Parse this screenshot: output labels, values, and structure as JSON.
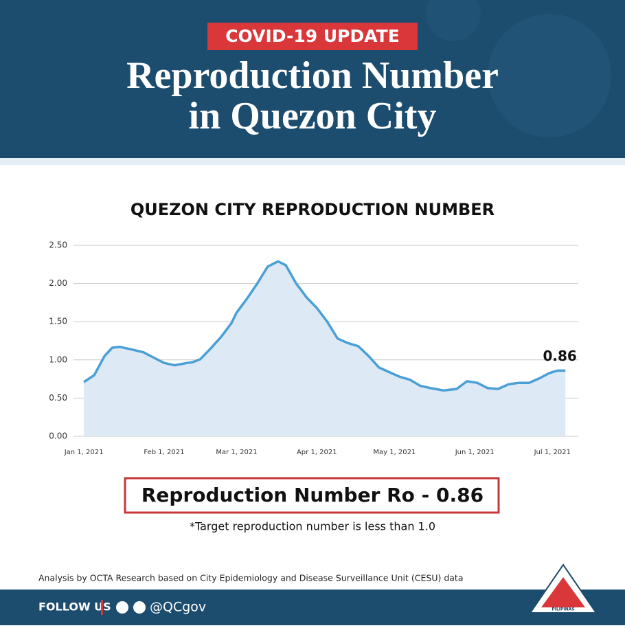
{
  "header": {
    "badge": "COVID-19 UPDATE",
    "title_line1": "Reproduction Number",
    "title_line2": "in Quezon City"
  },
  "chart_data": {
    "type": "area",
    "title": "QUEZON CITY REPRODUCTION NUMBER",
    "x": [
      "2021-01-01",
      "2021-01-05",
      "2021-01-09",
      "2021-01-12",
      "2021-01-15",
      "2021-01-19",
      "2021-01-24",
      "2021-01-28",
      "2021-02-01",
      "2021-02-05",
      "2021-02-10",
      "2021-02-12",
      "2021-02-15",
      "2021-02-19",
      "2021-02-23",
      "2021-02-27",
      "2021-03-01",
      "2021-03-05",
      "2021-03-09",
      "2021-03-13",
      "2021-03-17",
      "2021-03-20",
      "2021-03-24",
      "2021-03-28",
      "2021-04-01",
      "2021-04-05",
      "2021-04-09",
      "2021-04-13",
      "2021-04-17",
      "2021-04-21",
      "2021-04-25",
      "2021-04-29",
      "2021-05-03",
      "2021-05-07",
      "2021-05-11",
      "2021-05-15",
      "2021-05-20",
      "2021-05-25",
      "2021-05-29",
      "2021-06-02",
      "2021-06-06",
      "2021-06-10",
      "2021-06-14",
      "2021-06-18",
      "2021-06-22",
      "2021-06-26",
      "2021-06-30",
      "2021-07-03",
      "2021-07-06"
    ],
    "values": [
      0.71,
      0.8,
      1.05,
      1.16,
      1.17,
      1.14,
      1.1,
      1.03,
      0.96,
      0.93,
      0.96,
      0.97,
      1.01,
      1.15,
      1.3,
      1.48,
      1.62,
      1.8,
      2.0,
      2.22,
      2.29,
      2.24,
      2.0,
      1.82,
      1.68,
      1.5,
      1.28,
      1.22,
      1.18,
      1.05,
      0.9,
      0.84,
      0.78,
      0.74,
      0.66,
      0.63,
      0.6,
      0.62,
      0.72,
      0.7,
      0.63,
      0.62,
      0.68,
      0.7,
      0.7,
      0.76,
      0.83,
      0.86,
      0.86
    ],
    "color": "#4a9fd5",
    "fill": "#dde9f5",
    "xlim": [
      "2020-12-28",
      "2021-07-11"
    ],
    "xticks": [
      {
        "value": "2021-01-01",
        "label": "Jan 1, 2021"
      },
      {
        "value": "2021-02-01",
        "label": "Feb 1, 2021"
      },
      {
        "value": "2021-03-01",
        "label": "Mar 1, 2021"
      },
      {
        "value": "2021-04-01",
        "label": "Apr 1, 2021"
      },
      {
        "value": "2021-05-01",
        "label": "May 1, 2021"
      },
      {
        "value": "2021-06-01",
        "label": "Jun 1, 2021"
      },
      {
        "value": "2021-07-01",
        "label": "Jul 1, 2021"
      }
    ],
    "ylim": [
      0,
      2.5
    ],
    "yticks": [
      {
        "value": 0,
        "label": "0.00"
      },
      {
        "value": 0.5,
        "label": "0.50"
      },
      {
        "value": 1,
        "label": "1.00"
      },
      {
        "value": 1.5,
        "label": "1.50"
      },
      {
        "value": 2,
        "label": "2.00"
      },
      {
        "value": 2.5,
        "label": "2.50"
      }
    ],
    "grid": true,
    "annotation": "0.86"
  },
  "summary": {
    "box": "Reproduction Number Ro - 0.86",
    "note": "*Target reproduction number is less than 1.0"
  },
  "footer": {
    "source": "Analysis by OCTA Research based on City Epidemiology and Disease Surveillance Unit (CESU) data",
    "follow": "FOLLOW US",
    "handle": "@QCgov",
    "logo": "PILIPINAS"
  }
}
